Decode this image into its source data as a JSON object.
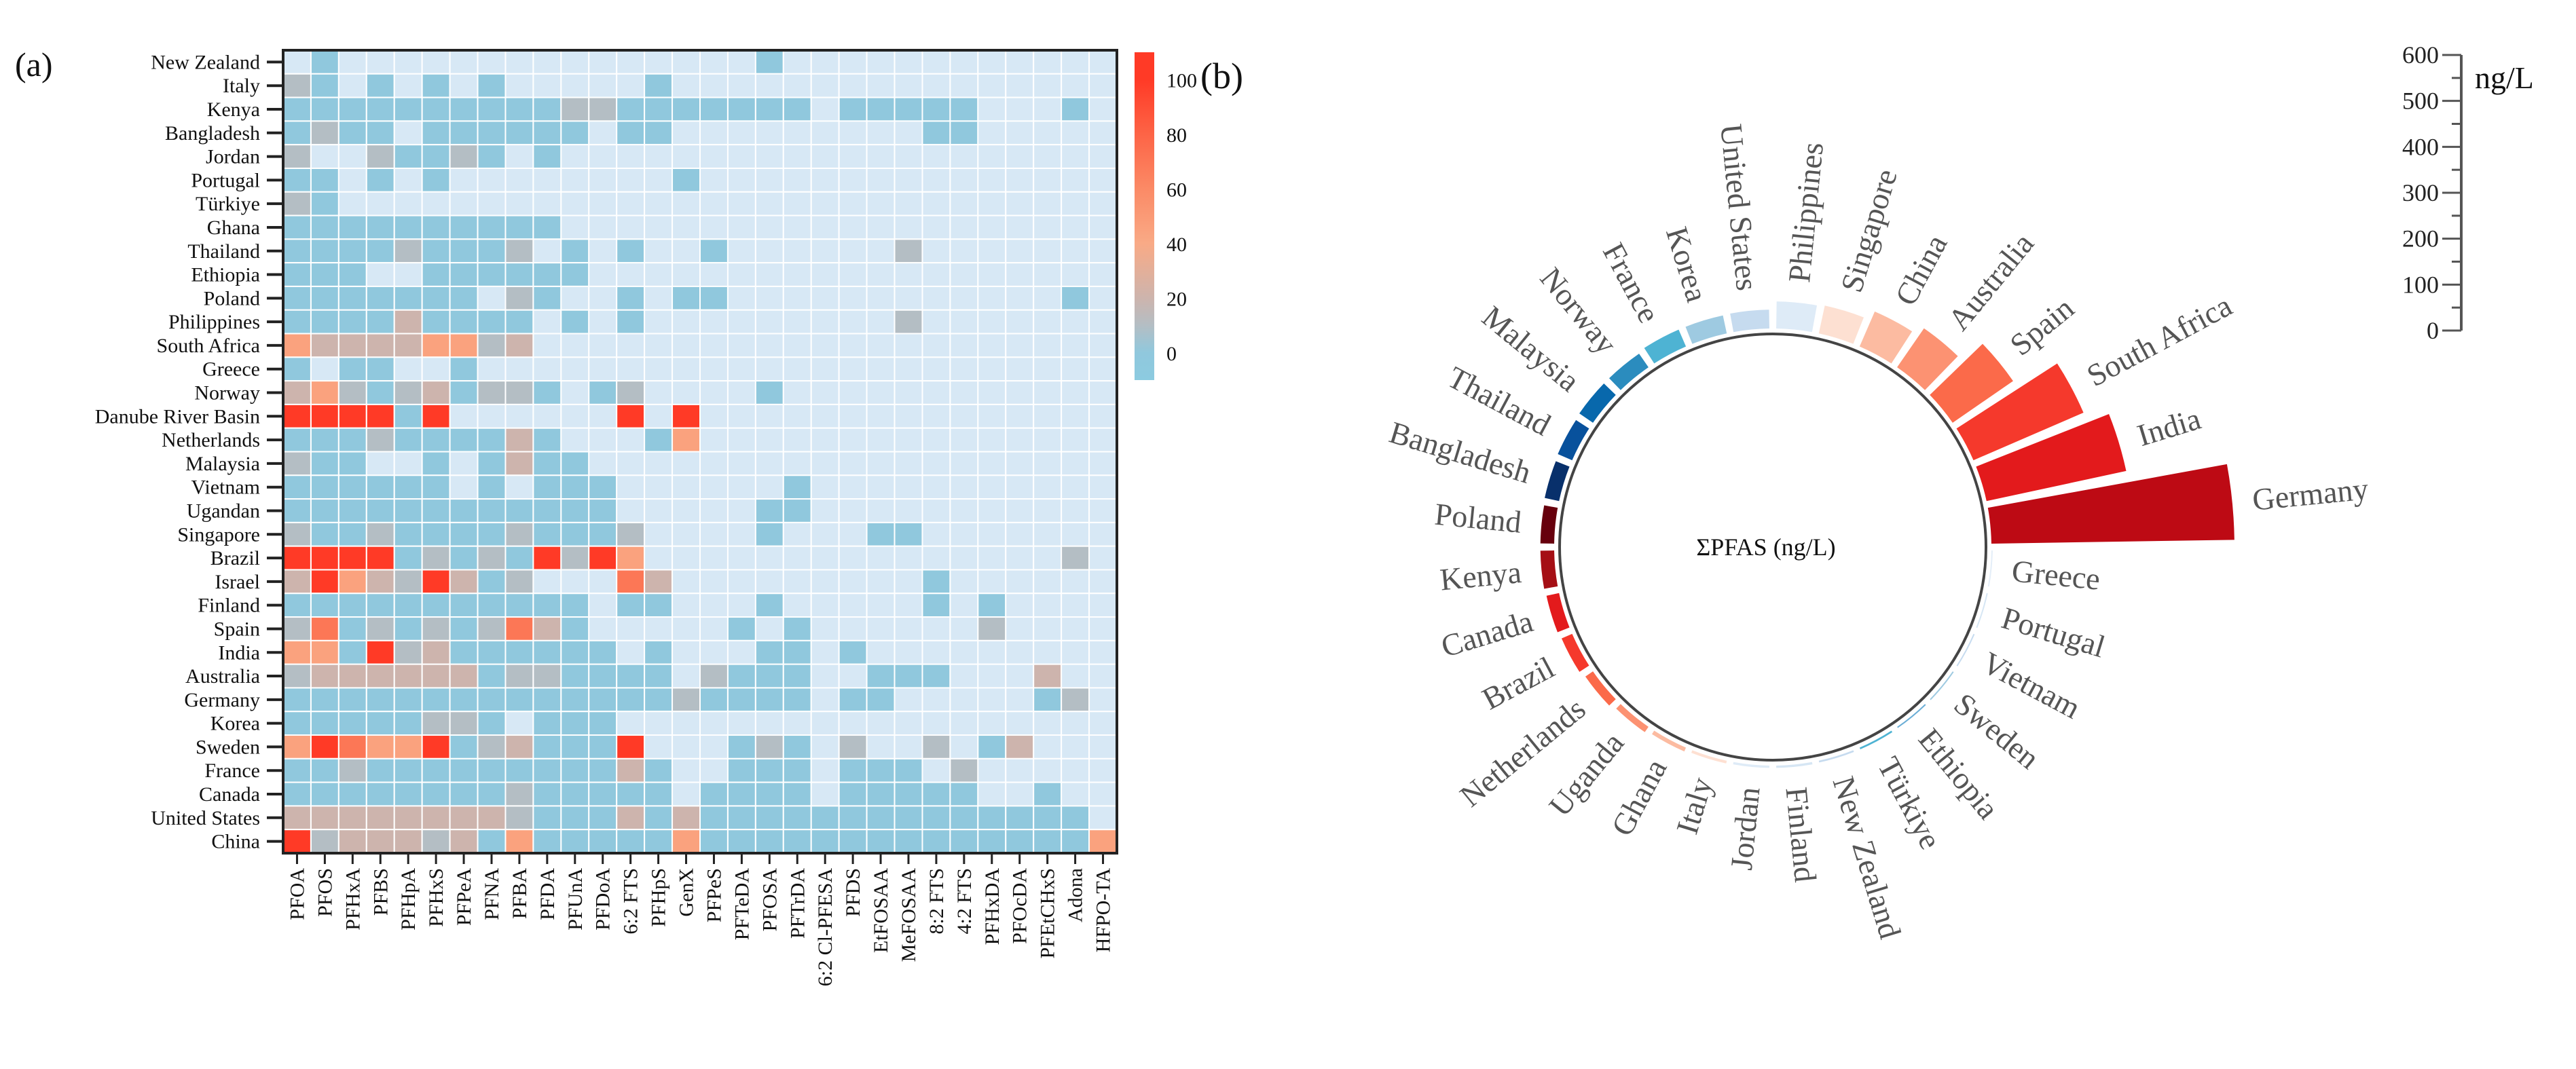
{
  "panel_a_label": "(a)",
  "panel_b_label": "(b)",
  "chart_data": [
    {
      "type": "heatmap",
      "rows": [
        "New Zealand",
        "Italy",
        "Kenya",
        "Bangladesh",
        "Jordan",
        "Portugal",
        "Türkiye",
        "Ghana",
        "Thailand",
        "Ethiopia",
        "Poland",
        "Philippines",
        "South Africa",
        "Greece",
        "Norway",
        "Danube River Basin",
        "Netherlands",
        "Malaysia",
        "Vietnam",
        "Ugandan",
        "Singapore",
        "Brazil",
        "Israel",
        "Finland",
        "Spain",
        "India",
        "Australia",
        "Germany",
        "Korea",
        "Sweden",
        "France",
        "Canada",
        "United States",
        "China"
      ],
      "columns": [
        "PFOA",
        "PFOS",
        "PFHxA",
        "PFBS",
        "PFHpA",
        "PFHxS",
        "PFPeA",
        "PFNA",
        "PFBA",
        "PFDA",
        "PFUnA",
        "PFDoA",
        "6:2 FTS",
        "PFHpS",
        "GenX",
        "PFPeS",
        "PFTeDA",
        "PFOSA",
        "PFTrDA",
        "6:2 Cl-PFESA",
        "PFDS",
        "EtFOSAA",
        "MeFOSAA",
        "8:2 FTS",
        "4:2 FTS",
        "PFHxDA",
        "PFOcDA",
        "PFEtCHxS",
        "Adona",
        "HFPO-TA"
      ],
      "value_codes": {
        ".": null,
        "b": 0,
        "g": 10,
        "G": 20,
        "p": 45,
        "o": 70,
        "R": 100
      },
      "values_coded": [
        ".b...............b............",
        "gb.b.b.b.....b................",
        "bbbbbbbbbbggbbbbbbb.bbbbb...b.",
        "bgbb.bbbbbb.bb.........bb.....",
        "g..gbbgb.b....................",
        "bb.b.b........b...............",
        "gb............................",
        "bbbbbbbbbb....................",
        "bbbbgbbbg.b.b..b......g.......",
        "bbb..bbbbbb...................",
        "bbbbbbb.gb..b.bb............b.",
        "bbbbGbbbb.b.b.........g.......",
        "pGGGGppgG.....................",
        "b.bb..b.......................",
        "GpgbgGbggb.bg....b............",
        "RRRRbR......R.R...............",
        "bbbgbbbbGb...bp...............",
        "gbb..b.bGbb...................",
        "bbbbbb.b.bbb......b...........",
        "bbbbbbbbbbbb.....bb...........",
        "gbbgbbbbgbbbg....b...bb.......",
        "RRRRbgbgbRgRp...............g.",
        "GRpGgRGbg...oG.........b......",
        "bbbbbbbbbbb.bb...b.....b.b....",
        "gobgbgbgoGb.....b.b......g....",
        "ppbRgGbbbbbb.b...bb.b.........",
        "gGGGGGGbggbbbb.gbbb..bbb...G..",
        "bbbbbbbbbbbbbbgbbbb.bb.....bg.",
        "bbbbbggb.bbb..................",
        "pRoppRbgGbbbR...bgb.g..g.bG...",
        "bbgbbbbbbbbbGb..bbb.bbb.g.....",
        "bbbbbbbbgbbbbb.bbbb.bbbbb..b..",
        "GGGGGGGGgbbbGbGbbbbbbbbbbbbbb.",
        "RgGGGgGbpbbbbbpbbbbbbbbbbbbbbp"
      ],
      "colorbar": {
        "ticks": [
          0,
          20,
          40,
          60,
          80,
          100
        ],
        "range": [
          -10,
          110
        ],
        "stops": [
          [
            -10,
            "#8ccbe0"
          ],
          [
            0,
            "#90c8dd"
          ],
          [
            10,
            "#b4bec4"
          ],
          [
            20,
            "#cdb4ad"
          ],
          [
            40,
            "#f9aa86"
          ],
          [
            60,
            "#fb8a66"
          ],
          [
            80,
            "#fd6446"
          ],
          [
            100,
            "#ff3a26"
          ]
        ],
        "missing_color": "#d7e8f5"
      }
    },
    {
      "type": "bar",
      "subtype": "circular",
      "center_label": "ΣPFAS (ng/L)",
      "axis_unit": "ng/L",
      "axis_ticks": [
        0,
        100,
        200,
        300,
        400,
        500,
        600
      ],
      "ylim": [
        0,
        600
      ],
      "categories": [
        "Germany",
        "Greece",
        "Portugal",
        "Vietnam",
        "Sweden",
        "Ethiopia",
        "Türkiye",
        "New Zealand",
        "Finland",
        "Jordan",
        "Italy",
        "Ghana",
        "Uganda",
        "Netherlands",
        "Brazil",
        "Canada",
        "Kenya",
        "Poland",
        "Bangladesh",
        "Thailand",
        "Malaysia",
        "Norway",
        "France",
        "Korea",
        "United States",
        "Philippines",
        "Singapore",
        "China",
        "Australia",
        "Spain",
        "South Africa",
        "India"
      ],
      "values": [
        529,
        2,
        2,
        2,
        3,
        3,
        4,
        4,
        5,
        5,
        6,
        9,
        14,
        20,
        25,
        28,
        30,
        30,
        32,
        34,
        36,
        36,
        40,
        40,
        41,
        59,
        62,
        83,
        103,
        160,
        261,
        311
      ],
      "colors": [
        "#bd0a14",
        "#e4eef8",
        "#d6e6f4",
        "#c6dbef",
        "#9ecae1",
        "#6baed6",
        "#4eb3d3",
        "#c6dbef",
        "#d6e6f4",
        "#deebf7",
        "#fee0d2",
        "#fcbba1",
        "#fc9272",
        "#fb6a4a",
        "#f5392c",
        "#e31a1c",
        "#a50f15",
        "#67000d",
        "#08306b",
        "#08519c",
        "#0868ac",
        "#2b8cbe",
        "#4eb3d3",
        "#9ecae1",
        "#c6dbef",
        "#deebf7",
        "#fde0d2",
        "#fcbba1",
        "#fc9272",
        "#fb6a4a",
        "#f5392c",
        "#e31a1c"
      ]
    }
  ]
}
